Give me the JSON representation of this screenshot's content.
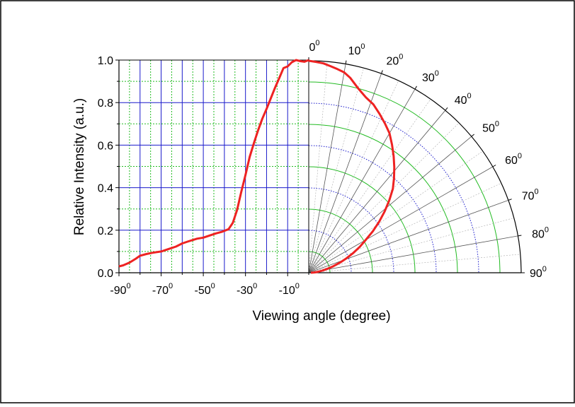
{
  "chart_data": {
    "type": "line",
    "xlabel": "Viewing angle (degree)",
    "ylabel": "Relative Intensity (a.u.)",
    "xlim": [
      -90,
      0
    ],
    "ylim": [
      0,
      1.0
    ],
    "x_ticks": [
      {
        "base": "-90",
        "exp": "0"
      },
      {
        "base": "-70",
        "exp": "0"
      },
      {
        "base": "-50",
        "exp": "0"
      },
      {
        "base": "-30",
        "exp": "0"
      },
      {
        "base": "-10",
        "exp": "0"
      }
    ],
    "y_ticks": [
      "0.0",
      "0.2",
      "0.4",
      "0.6",
      "0.8",
      "1.0"
    ],
    "polar_ticks": [
      {
        "base": "0",
        "exp": "0"
      },
      {
        "base": "10",
        "exp": "0"
      },
      {
        "base": "20",
        "exp": "0"
      },
      {
        "base": "30",
        "exp": "0"
      },
      {
        "base": "40",
        "exp": "0"
      },
      {
        "base": "50",
        "exp": "0"
      },
      {
        "base": "60",
        "exp": "0"
      },
      {
        "base": "70",
        "exp": "0"
      },
      {
        "base": "80",
        "exp": "0"
      },
      {
        "base": "90",
        "exp": "0"
      }
    ],
    "grid": true,
    "colors": {
      "curve": "#ee2222",
      "major_grid": "#1a1acc",
      "minor_grid": "#22bb22",
      "polar_spoke": "#555555"
    },
    "series": [
      {
        "values_xy": [
          [
            -90,
            0.03
          ],
          [
            -88,
            0.035
          ],
          [
            -85,
            0.048
          ],
          [
            -82,
            0.066
          ],
          [
            -80,
            0.08
          ],
          [
            -77,
            0.088
          ],
          [
            -74,
            0.094
          ],
          [
            -70,
            0.1
          ],
          [
            -67,
            0.11
          ],
          [
            -63,
            0.123
          ],
          [
            -60,
            0.138
          ],
          [
            -57,
            0.148
          ],
          [
            -53,
            0.16
          ],
          [
            -50,
            0.165
          ],
          [
            -47,
            0.175
          ],
          [
            -44,
            0.185
          ],
          [
            -41,
            0.193
          ],
          [
            -38,
            0.205
          ],
          [
            -36,
            0.235
          ],
          [
            -34,
            0.295
          ],
          [
            -32,
            0.38
          ],
          [
            -30,
            0.46
          ],
          [
            -28,
            0.545
          ],
          [
            -26,
            0.61
          ],
          [
            -24,
            0.67
          ],
          [
            -22,
            0.725
          ],
          [
            -20,
            0.77
          ],
          [
            -18,
            0.82
          ],
          [
            -16,
            0.87
          ],
          [
            -14,
            0.915
          ],
          [
            -12,
            0.962
          ],
          [
            -10,
            0.97
          ],
          [
            -8,
            0.99
          ],
          [
            -6,
            1.0
          ],
          [
            -4,
            0.995
          ],
          [
            -2,
            0.992
          ],
          [
            0,
            1.0
          ]
        ]
      },
      {
        "polar_angle_intensity": [
          [
            0,
            1.0
          ],
          [
            2,
            0.995
          ],
          [
            4,
            0.99
          ],
          [
            6,
            0.98
          ],
          [
            8,
            0.97
          ],
          [
            10,
            0.96
          ],
          [
            12,
            0.94
          ],
          [
            15,
            0.9
          ],
          [
            18,
            0.87
          ],
          [
            21,
            0.85
          ],
          [
            24,
            0.82
          ],
          [
            27,
            0.79
          ],
          [
            30,
            0.76
          ],
          [
            33,
            0.72
          ],
          [
            36,
            0.68
          ],
          [
            39,
            0.64
          ],
          [
            42,
            0.6
          ],
          [
            45,
            0.56
          ],
          [
            48,
            0.51
          ],
          [
            51,
            0.46
          ],
          [
            54,
            0.41
          ],
          [
            57,
            0.36
          ],
          [
            60,
            0.31
          ],
          [
            63,
            0.27
          ],
          [
            66,
            0.23
          ],
          [
            69,
            0.19
          ],
          [
            72,
            0.155
          ],
          [
            75,
            0.12
          ],
          [
            78,
            0.09
          ],
          [
            81,
            0.065
          ],
          [
            84,
            0.045
          ],
          [
            87,
            0.025
          ],
          [
            90,
            0.01
          ]
        ]
      }
    ]
  }
}
